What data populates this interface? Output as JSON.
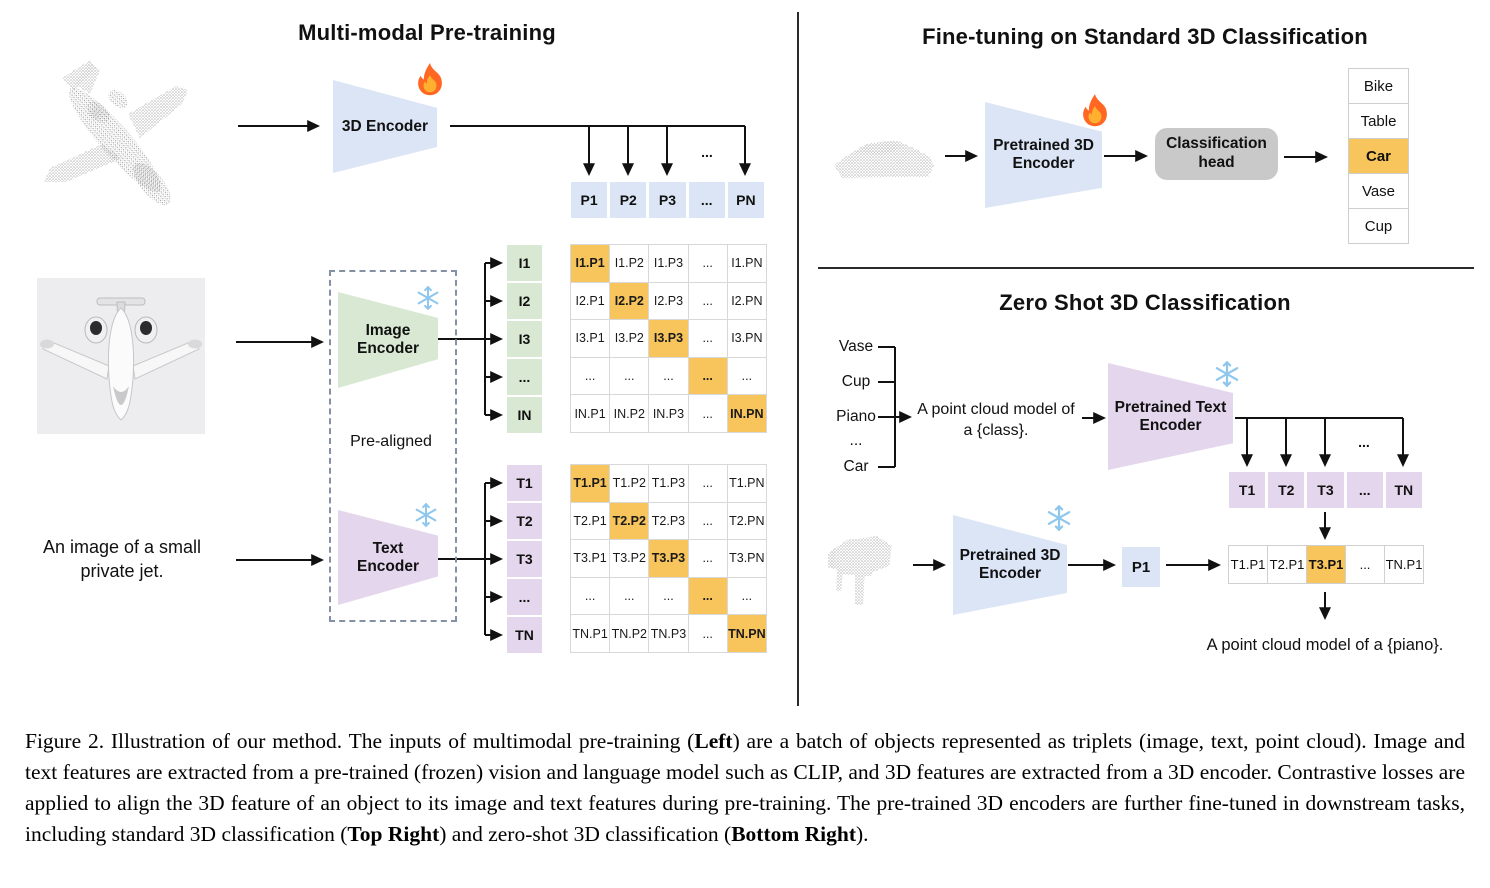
{
  "colors": {
    "blue": "#dbe5f5",
    "green": "#d9e8d3",
    "purple": "#e4d6ec",
    "orange": "#f8c55c",
    "gray": "#c9c9c9"
  },
  "left_panel": {
    "title": "Multi-modal Pre-training",
    "encoder_3d_label": "3D Encoder",
    "image_encoder_label": "Image Encoder",
    "text_encoder_label": "Text Encoder",
    "pre_aligned_label": "Pre-aligned",
    "image_caption": "An image of a small private jet.",
    "p_row": [
      "P1",
      "P2",
      "P3",
      "...",
      "PN"
    ],
    "p_row_ellipsis": "...",
    "i_labels": [
      "I1",
      "I2",
      "I3",
      "...",
      "IN"
    ],
    "t_labels": [
      "T1",
      "T2",
      "T3",
      "...",
      "TN"
    ],
    "i_matrix": [
      {
        "t": "I1.P1",
        "hl": true
      },
      {
        "t": "I1.P2"
      },
      {
        "t": "I1.P3"
      },
      {
        "t": "..."
      },
      {
        "t": "I1.PN"
      },
      {
        "t": "I2.P1"
      },
      {
        "t": "I2.P2",
        "hl": true
      },
      {
        "t": "I2.P3"
      },
      {
        "t": "..."
      },
      {
        "t": "I2.PN"
      },
      {
        "t": "I3.P1"
      },
      {
        "t": "I3.P2"
      },
      {
        "t": "I3.P3",
        "hl": true
      },
      {
        "t": "..."
      },
      {
        "t": "I3.PN"
      },
      {
        "t": "..."
      },
      {
        "t": "..."
      },
      {
        "t": "..."
      },
      {
        "t": "...",
        "hl": true
      },
      {
        "t": "..."
      },
      {
        "t": "IN.P1"
      },
      {
        "t": "IN.P2"
      },
      {
        "t": "IN.P3"
      },
      {
        "t": "..."
      },
      {
        "t": "IN.PN",
        "hl": true
      }
    ],
    "t_matrix": [
      {
        "t": "T1.P1",
        "hl": true
      },
      {
        "t": "T1.P2"
      },
      {
        "t": "T1.P3"
      },
      {
        "t": "..."
      },
      {
        "t": "T1.PN"
      },
      {
        "t": "T2.P1"
      },
      {
        "t": "T2.P2",
        "hl": true
      },
      {
        "t": "T2.P3"
      },
      {
        "t": "..."
      },
      {
        "t": "T2.PN"
      },
      {
        "t": "T3.P1"
      },
      {
        "t": "T3.P2"
      },
      {
        "t": "T3.P3",
        "hl": true
      },
      {
        "t": "..."
      },
      {
        "t": "T3.PN"
      },
      {
        "t": "..."
      },
      {
        "t": "..."
      },
      {
        "t": "..."
      },
      {
        "t": "...",
        "hl": true
      },
      {
        "t": "..."
      },
      {
        "t": "TN.P1"
      },
      {
        "t": "TN.P2"
      },
      {
        "t": "TN.P3"
      },
      {
        "t": "..."
      },
      {
        "t": "TN.PN",
        "hl": true
      }
    ]
  },
  "top_right_panel": {
    "title": "Fine-tuning on Standard 3D Classification",
    "encoder_label": "Pretrained 3D Encoder",
    "head_label": "Classification head",
    "classes": [
      {
        "t": "Bike"
      },
      {
        "t": "Table"
      },
      {
        "t": "Car",
        "hl": true
      },
      {
        "t": "Vase"
      },
      {
        "t": "Cup"
      }
    ]
  },
  "bottom_right_panel": {
    "title": "Zero Shot 3D Classification",
    "class_words": [
      "Vase",
      "Cup",
      "Piano",
      "...",
      "Car"
    ],
    "prompt_text": "A point cloud model of a {class}.",
    "text_encoder_label": "Pretrained Text Encoder",
    "encoder_3d_label": "Pretrained 3D Encoder",
    "p1_label": "P1",
    "t_row": [
      "T1",
      "T2",
      "T3",
      "...",
      "TN"
    ],
    "t_row_ellipsis": "...",
    "result_row": [
      {
        "t": "T1.P1"
      },
      {
        "t": "T2.P1"
      },
      {
        "t": "T3.P1",
        "hl": true
      },
      {
        "t": "..."
      },
      {
        "t": "TN.P1"
      }
    ],
    "result_text": "A point cloud model of a {piano}."
  },
  "caption": {
    "segments": [
      {
        "t": "Figure 2. Illustration of our method. The inputs of multimodal pre-training ("
      },
      {
        "t": "Left",
        "b": true
      },
      {
        "t": ") are a batch of objects represented as triplets (image, text, point cloud).  Image and text features are extracted from a pre-trained (frozen) vision and language model such as CLIP, and 3D features are extracted from a 3D encoder.  Contrastive losses are applied to align the 3D feature of an object to its image and text features during pre-training. The pre-trained 3D encoders are further fine-tuned in downstream tasks, including standard 3D classification ("
      },
      {
        "t": "Top Right",
        "b": true
      },
      {
        "t": ") and zero-shot 3D classification ("
      },
      {
        "t": "Bottom Right",
        "b": true
      },
      {
        "t": ")."
      }
    ]
  }
}
